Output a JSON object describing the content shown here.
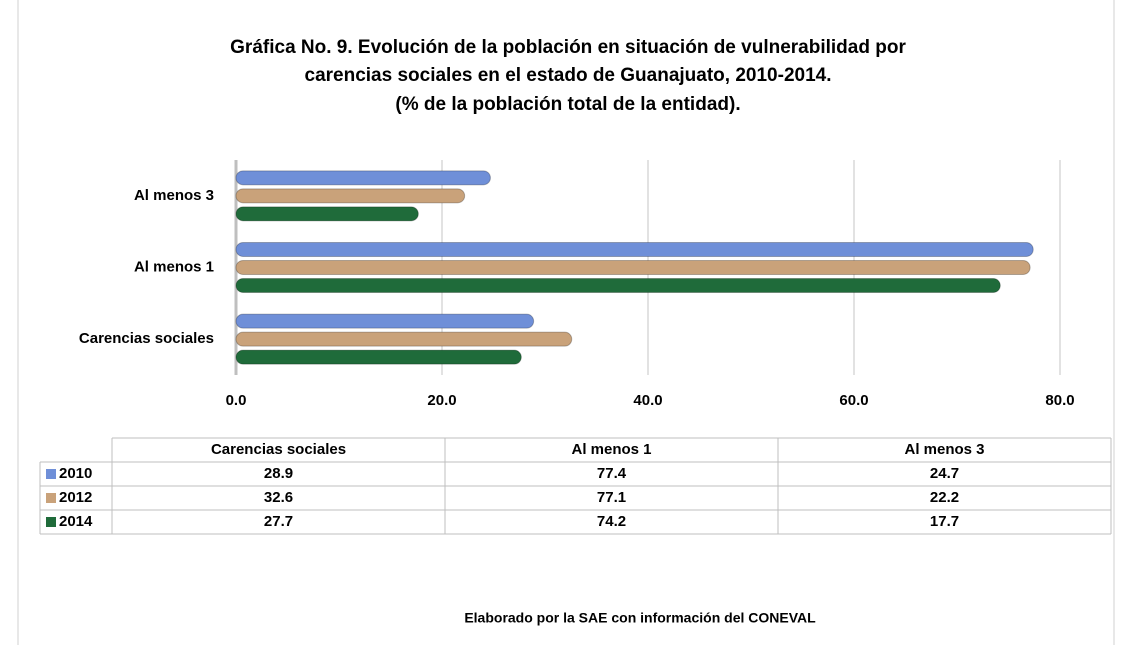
{
  "chart_data": {
    "type": "bar",
    "orientation": "horizontal",
    "title": [
      "Gráfica No. 9. Evolución de la población en situación de vulnerabilidad por",
      "carencias sociales en el estado de Guanajuato, 2010-2014.",
      "(% de la población total de la entidad)."
    ],
    "categories": [
      "Carencias sociales",
      "Al menos 1",
      "Al menos 3"
    ],
    "series": [
      {
        "name": "2010",
        "color": "#6f8fd8",
        "values": [
          28.9,
          77.4,
          24.7
        ]
      },
      {
        "name": "2012",
        "color": "#c9a27a",
        "values": [
          32.6,
          77.1,
          22.2
        ]
      },
      {
        "name": "2014",
        "color": "#1f6b3a",
        "values": [
          27.7,
          74.2,
          17.7
        ]
      }
    ],
    "xlim": [
      0,
      80
    ],
    "xticks": [
      {
        "value": 0,
        "label": "0.0"
      },
      {
        "value": 20,
        "label": "20.0"
      },
      {
        "value": 40,
        "label": "40.0"
      },
      {
        "value": 60,
        "label": "60.0"
      },
      {
        "value": 80,
        "label": "80.0"
      }
    ],
    "grid": true,
    "source": "Elaborado por la SAE con información del CONEVAL"
  }
}
